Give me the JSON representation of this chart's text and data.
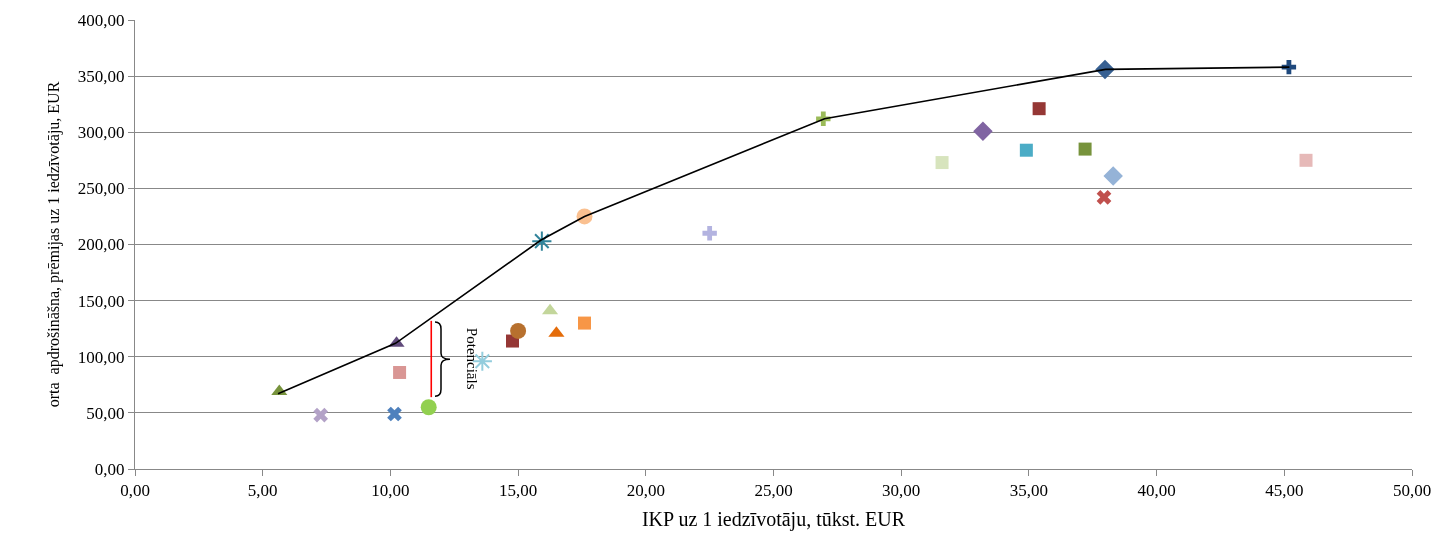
{
  "chart_data": {
    "type": "scatter",
    "xlabel": "IKP uz 1 iedzīvotāju, tūkst. EUR",
    "ylabel": "orta  apdrošināšna, prēmijas uz 1 iedzīvotāju, EUR",
    "xlim": [
      0,
      50
    ],
    "ylim": [
      0,
      400
    ],
    "xticks": [
      {
        "value": 0,
        "label": "0,00"
      },
      {
        "value": 5,
        "label": "5,00"
      },
      {
        "value": 10,
        "label": "10,00"
      },
      {
        "value": 15,
        "label": "15,00"
      },
      {
        "value": 20,
        "label": "20,00"
      },
      {
        "value": 25,
        "label": "25,00"
      },
      {
        "value": 30,
        "label": "30,00"
      },
      {
        "value": 35,
        "label": "35,00"
      },
      {
        "value": 40,
        "label": "40,00"
      },
      {
        "value": 45,
        "label": "45,00"
      },
      {
        "value": 50,
        "label": "50,00"
      }
    ],
    "yticks": [
      {
        "value": 0,
        "label": "0,00"
      },
      {
        "value": 50,
        "label": "50,00"
      },
      {
        "value": 100,
        "label": "100,00"
      },
      {
        "value": 150,
        "label": "150,00"
      },
      {
        "value": 200,
        "label": "200,00"
      },
      {
        "value": 250,
        "label": "250,00"
      },
      {
        "value": 300,
        "label": "300,00"
      },
      {
        "value": 350,
        "label": "350,00"
      },
      {
        "value": 400,
        "label": "400,00"
      }
    ],
    "grid": "y",
    "annotations": [
      {
        "text": "Potenciāls",
        "x": 13.2,
        "y": 98
      }
    ],
    "series": [
      {
        "type": "line",
        "color": "#ff0000",
        "marker": "none",
        "x": [
          11.6,
          11.6
        ],
        "values": [
          64,
          132
        ]
      },
      {
        "color": "#77933c",
        "marker": "triangle",
        "x": [
          5.65
        ],
        "values": [
          69
        ]
      },
      {
        "color": "#b3a2c7",
        "marker": "x",
        "x": [
          7.27
        ],
        "values": [
          48
        ]
      },
      {
        "color": "#604a7b",
        "marker": "triangle",
        "x": [
          10.24
        ],
        "values": [
          112
        ]
      },
      {
        "color": "#d99694",
        "marker": "square",
        "x": [
          10.36
        ],
        "values": [
          86
        ]
      },
      {
        "color": "#4f81bd",
        "marker": "x",
        "x": [
          10.16
        ],
        "values": [
          49
        ]
      },
      {
        "color": "#92d050",
        "marker": "circle",
        "x": [
          11.5
        ],
        "values": [
          55
        ]
      },
      {
        "color": "#93cddd",
        "marker": "cross",
        "x": [
          13.6
        ],
        "values": [
          96
        ]
      },
      {
        "color": "#953735",
        "marker": "square",
        "x": [
          14.78
        ],
        "values": [
          114
        ]
      },
      {
        "color": "#b7702e",
        "marker": "circle",
        "x": [
          15.0
        ],
        "values": [
          123
        ]
      },
      {
        "color": "#31849b",
        "marker": "cross",
        "x": [
          15.93
        ],
        "values": [
          203
        ]
      },
      {
        "color": "#c3d69b",
        "marker": "triangle",
        "x": [
          16.25
        ],
        "values": [
          141
        ]
      },
      {
        "color": "#e46c0a",
        "marker": "triangle",
        "x": [
          16.5
        ],
        "values": [
          121
        ]
      },
      {
        "color": "#f79646",
        "marker": "square",
        "x": [
          17.6
        ],
        "values": [
          130
        ]
      },
      {
        "color": "#fac090",
        "marker": "circle",
        "x": [
          17.6
        ],
        "values": [
          225
        ]
      },
      {
        "color": "#b3b3e0",
        "marker": "plus",
        "x": [
          22.5
        ],
        "values": [
          210
        ]
      },
      {
        "color": "#9bbb59",
        "marker": "plus",
        "x": [
          26.95
        ],
        "values": [
          312
        ]
      },
      {
        "color": "#d7e4bd",
        "marker": "square",
        "x": [
          31.6
        ],
        "values": [
          273
        ]
      },
      {
        "color": "#8064a2",
        "marker": "diamond",
        "x": [
          33.2
        ],
        "values": [
          301
        ]
      },
      {
        "color": "#4bacc6",
        "marker": "square",
        "x": [
          34.9
        ],
        "values": [
          284
        ]
      },
      {
        "color": "#953735",
        "marker": "square",
        "x": [
          35.4
        ],
        "values": [
          321
        ]
      },
      {
        "color": "#77933c",
        "marker": "square",
        "x": [
          37.2
        ],
        "values": [
          285
        ]
      },
      {
        "color": "#376092",
        "marker": "diamond",
        "x": [
          37.98
        ],
        "values": [
          356
        ]
      },
      {
        "color": "#c0504d",
        "marker": "x",
        "x": [
          37.94
        ],
        "values": [
          242
        ]
      },
      {
        "color": "#95b3d7",
        "marker": "diamond",
        "x": [
          38.3
        ],
        "values": [
          261
        ]
      },
      {
        "color": "#1f497d",
        "marker": "plus",
        "x": [
          45.18
        ],
        "values": [
          358
        ]
      },
      {
        "color": "#e6b9b8",
        "marker": "square",
        "x": [
          45.85
        ],
        "values": [
          275
        ]
      },
      {
        "type": "line",
        "color": "#000000",
        "marker": "none",
        "x": [
          5.6,
          10.2,
          15.9,
          17.6,
          27.0,
          38.0,
          45.2
        ],
        "values": [
          67,
          112,
          204,
          225,
          312,
          356,
          358
        ]
      }
    ]
  }
}
